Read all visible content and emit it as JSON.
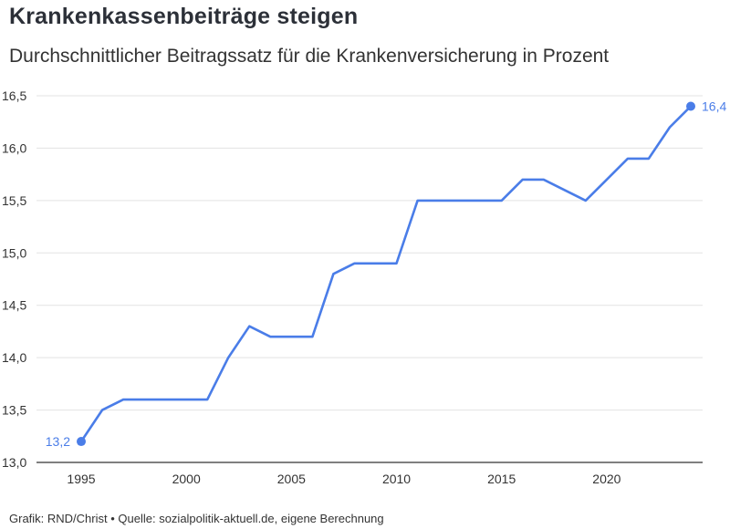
{
  "header": {
    "title": "Krankenkassenbeiträge steigen",
    "subtitle": "Durchschnittlicher Beitragssatz für die Krankenversicherung in Prozent"
  },
  "footer": {
    "credit": "Grafik: RND/Christ • Quelle: sozialpolitik-aktuell.de, eigene Berechnung"
  },
  "colors": {
    "line": "#4a7de8",
    "grid": "#e3e3e3",
    "axis": "#333333"
  },
  "chart_data": {
    "type": "line",
    "title": "Krankenkassenbeiträge steigen",
    "subtitle": "Durchschnittlicher Beitragssatz für die Krankenversicherung in Prozent",
    "xlabel": "",
    "ylabel": "",
    "x": [
      1995,
      1996,
      1997,
      1998,
      1999,
      2000,
      2001,
      2002,
      2003,
      2004,
      2005,
      2006,
      2007,
      2008,
      2009,
      2010,
      2011,
      2012,
      2013,
      2014,
      2015,
      2016,
      2017,
      2018,
      2019,
      2020,
      2021,
      2022,
      2023,
      2024
    ],
    "series": [
      {
        "values": [
          13.2,
          13.5,
          13.6,
          13.6,
          13.6,
          13.6,
          13.6,
          14.0,
          14.3,
          14.2,
          14.2,
          14.2,
          14.8,
          14.9,
          14.9,
          14.9,
          15.5,
          15.5,
          15.5,
          15.5,
          15.5,
          15.7,
          15.7,
          15.6,
          15.5,
          15.7,
          15.9,
          15.9,
          16.2,
          16.4
        ]
      }
    ],
    "xlim": [
      1995,
      2024
    ],
    "ylim": [
      13.0,
      16.5
    ],
    "x_ticks": [
      1995,
      2000,
      2005,
      2010,
      2015,
      2020
    ],
    "x_tick_labels": [
      "1995",
      "2000",
      "2005",
      "2010",
      "2015",
      "2020"
    ],
    "y_ticks": [
      13.0,
      13.5,
      14.0,
      14.5,
      15.0,
      15.5,
      16.0,
      16.5
    ],
    "y_tick_labels": [
      "13,0",
      "13,5",
      "14,0",
      "14,5",
      "15,0",
      "15,5",
      "16,0",
      "16,5"
    ],
    "annotations": [
      {
        "x": 1995,
        "y": 13.2,
        "text": "13,2"
      },
      {
        "x": 2024,
        "y": 16.4,
        "text": "16,4"
      }
    ],
    "grid": true,
    "legend": "none"
  }
}
